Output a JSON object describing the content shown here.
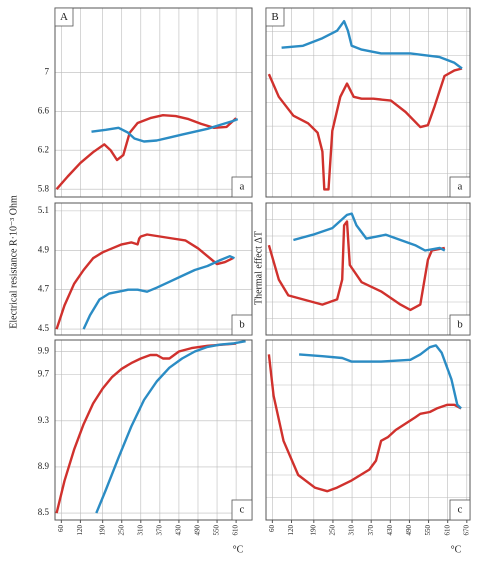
{
  "chart_data": [
    {
      "type": "line",
      "label": "A",
      "sublabel": "a",
      "xlim": [
        40,
        660
      ],
      "xticks": [
        60,
        120,
        190,
        250,
        310,
        370,
        430,
        490,
        550,
        610
      ],
      "ylim": [
        5.72,
        7.66
      ],
      "yticks": [
        5.8,
        6.2,
        6.6,
        7.0
      ],
      "grid": true,
      "series": [
        {
          "color": "#d0312d",
          "x": [
            45,
            80,
            120,
            160,
            195,
            215,
            235,
            255,
            275,
            300,
            340,
            380,
            420,
            460,
            500,
            540,
            580,
            610
          ],
          "values": [
            5.8,
            5.93,
            6.07,
            6.18,
            6.26,
            6.2,
            6.1,
            6.15,
            6.38,
            6.48,
            6.53,
            6.56,
            6.55,
            6.52,
            6.47,
            6.43,
            6.44,
            6.53
          ]
        },
        {
          "color": "#2b8cc4",
          "x": [
            155,
            200,
            240,
            270,
            290,
            320,
            360,
            400,
            440,
            480,
            520,
            560,
            600,
            615
          ],
          "values": [
            6.39,
            6.41,
            6.43,
            6.38,
            6.32,
            6.29,
            6.3,
            6.33,
            6.36,
            6.39,
            6.42,
            6.46,
            6.5,
            6.52
          ]
        }
      ]
    },
    {
      "type": "line",
      "label": "B",
      "sublabel": "a",
      "xlim": [
        40,
        680
      ],
      "xticks": [
        60,
        120,
        190,
        250,
        310,
        370,
        430,
        490,
        550,
        610,
        670
      ],
      "ylim": [
        0,
        100
      ],
      "grid": true,
      "series": [
        {
          "color": "#d0312d",
          "x": [
            49,
            80,
            126,
            172,
            202,
            217,
            223,
            236,
            248,
            273,
            294,
            315,
            340,
            377,
            432,
            478,
            524,
            548,
            569,
            600,
            631,
            655
          ],
          "values": [
            65,
            53,
            43,
            39,
            34,
            24,
            4,
            4,
            35,
            53,
            60,
            53,
            52,
            52,
            51,
            45,
            37,
            38,
            48,
            64,
            67,
            68
          ]
        },
        {
          "color": "#2b8cc4",
          "x": [
            89,
            156,
            217,
            263,
            285,
            297,
            309,
            340,
            401,
            493,
            585,
            631,
            655
          ],
          "values": [
            79,
            80,
            84,
            88,
            93,
            88,
            80,
            78,
            76,
            76,
            74,
            71,
            68
          ]
        }
      ]
    },
    {
      "type": "line",
      "sublabel": "b",
      "xlim": [
        40,
        660
      ],
      "xticks": [
        60,
        120,
        190,
        250,
        310,
        370,
        430,
        490,
        550,
        610
      ],
      "ylim": [
        4.47,
        5.14
      ],
      "yticks": [
        4.5,
        4.7,
        4.9,
        5.1
      ],
      "grid": true,
      "ylabel": "Electrical resistance R·10⁻³ Ohm",
      "series": [
        {
          "color": "#d0312d",
          "x": [
            45,
            70,
            100,
            130,
            160,
            190,
            220,
            250,
            280,
            300,
            305,
            310,
            330,
            370,
            410,
            450,
            490,
            520,
            550,
            575,
            600
          ],
          "values": [
            4.5,
            4.62,
            4.73,
            4.8,
            4.86,
            4.89,
            4.91,
            4.93,
            4.94,
            4.93,
            4.96,
            4.97,
            4.98,
            4.97,
            4.96,
            4.95,
            4.91,
            4.87,
            4.83,
            4.84,
            4.86
          ]
        },
        {
          "color": "#2b8cc4",
          "x": [
            130,
            150,
            180,
            210,
            240,
            270,
            300,
            330,
            360,
            400,
            440,
            480,
            520,
            560,
            590,
            605
          ],
          "values": [
            4.5,
            4.57,
            4.65,
            4.68,
            4.69,
            4.7,
            4.7,
            4.69,
            4.71,
            4.74,
            4.77,
            4.8,
            4.82,
            4.85,
            4.87,
            4.86
          ]
        }
      ]
    },
    {
      "type": "line",
      "sublabel": "b",
      "xlim": [
        40,
        680
      ],
      "xticks": [
        60,
        120,
        190,
        250,
        310,
        370,
        430,
        490,
        550,
        610,
        670
      ],
      "ylim": [
        0,
        100
      ],
      "grid": true,
      "ylabel": "Thermal effect ΔT",
      "series": [
        {
          "color": "#d0312d",
          "x": [
            49,
            80,
            110,
            156,
            217,
            263,
            279,
            285,
            294,
            303,
            340,
            401,
            462,
            493,
            524,
            548,
            560,
            601
          ],
          "values": [
            68,
            42,
            30,
            27,
            23,
            27,
            42,
            83,
            86,
            53,
            40,
            33,
            23,
            19,
            23,
            57,
            64,
            66
          ]
        },
        {
          "color": "#2b8cc4",
          "x": [
            126,
            187,
            248,
            294,
            309,
            324,
            355,
            416,
            462,
            508,
            539,
            585,
            601
          ],
          "values": [
            72,
            76,
            81,
            91,
            92,
            83,
            73,
            76,
            72,
            68,
            64,
            66,
            64
          ]
        }
      ]
    },
    {
      "type": "line",
      "sublabel": "c",
      "xlim": [
        40,
        660
      ],
      "xticks": [
        60,
        120,
        190,
        250,
        310,
        370,
        430,
        490,
        550,
        610
      ],
      "ylim": [
        8.44,
        10.0
      ],
      "yticks": [
        8.5,
        8.9,
        9.3,
        9.7,
        9.9
      ],
      "grid": true,
      "xlabel": "°C",
      "series": [
        {
          "color": "#d0312d",
          "x": [
            45,
            70,
            100,
            130,
            160,
            190,
            220,
            250,
            280,
            310,
            340,
            360,
            380,
            400,
            430,
            470,
            520,
            570,
            610
          ],
          "values": [
            8.5,
            8.78,
            9.05,
            9.27,
            9.45,
            9.58,
            9.68,
            9.75,
            9.8,
            9.84,
            9.87,
            9.87,
            9.84,
            9.84,
            9.9,
            9.93,
            9.95,
            9.96,
            9.97
          ]
        },
        {
          "color": "#2b8cc4",
          "x": [
            170,
            200,
            240,
            280,
            320,
            360,
            400,
            440,
            480,
            520,
            560,
            600,
            640
          ],
          "values": [
            8.5,
            8.7,
            8.98,
            9.25,
            9.48,
            9.64,
            9.76,
            9.84,
            9.9,
            9.94,
            9.96,
            9.97,
            9.99
          ]
        }
      ]
    },
    {
      "type": "line",
      "sublabel": "c",
      "xlim": [
        40,
        680
      ],
      "xticks": [
        60,
        120,
        190,
        250,
        310,
        370,
        430,
        490,
        550,
        610,
        670
      ],
      "ylim": [
        0,
        100
      ],
      "grid": true,
      "xlabel": "°C",
      "series": [
        {
          "color": "#d0312d",
          "x": [
            49,
            64,
            95,
            141,
            193,
            232,
            263,
            309,
            364,
            385,
            401,
            422,
            447,
            508,
            524,
            554,
            576,
            609,
            631,
            652
          ],
          "values": [
            92,
            69,
            44,
            25,
            18,
            16,
            18,
            22,
            28,
            33,
            44,
            46,
            50,
            57,
            59,
            60,
            62,
            64,
            64,
            62
          ]
        },
        {
          "color": "#2b8cc4",
          "x": [
            144,
            217,
            279,
            309,
            401,
            493,
            524,
            554,
            573,
            591,
            622,
            640,
            652
          ],
          "values": [
            92,
            91,
            90,
            88,
            88,
            89,
            92,
            96,
            97,
            93,
            78,
            64,
            62
          ]
        }
      ]
    }
  ]
}
